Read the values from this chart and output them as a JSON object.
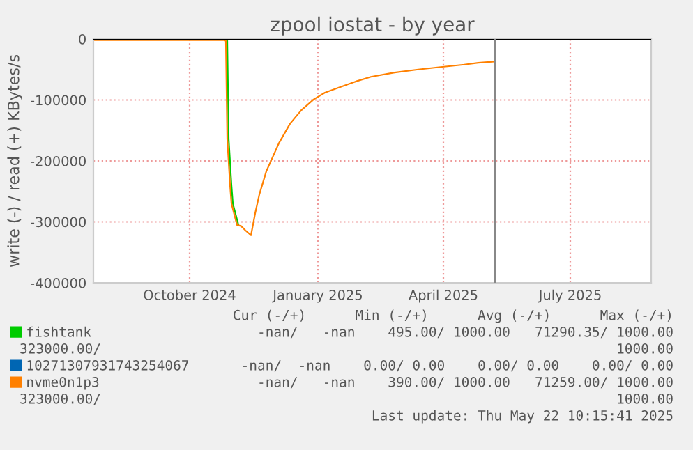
{
  "chart_data": {
    "type": "line",
    "title": "zpool iostat - by year",
    "ylabel": "write (-) / read (+) KBytes/s",
    "xlim": [
      "2024-07-24",
      "2025-08-28"
    ],
    "xticks": [
      {
        "value": "2024-10-01",
        "label": "October 2024"
      },
      {
        "value": "2025-01-01",
        "label": "January 2025"
      },
      {
        "value": "2025-04-01",
        "label": "April 2025"
      },
      {
        "value": "2025-07-01",
        "label": "July 2025"
      }
    ],
    "ylim": [
      -400000,
      0
    ],
    "yticks": [
      0,
      -100000,
      -200000,
      -300000,
      -400000
    ],
    "grid": true,
    "legend": "bottom",
    "marker": "none",
    "line_style": "solid",
    "series": [
      {
        "name": "fishtank",
        "color": "#00cc00",
        "x": [
          "2024-10-28",
          "2024-10-29",
          "2024-10-31",
          "2024-11-01",
          "2024-11-05"
        ],
        "values": [
          -3000,
          -164000,
          -240000,
          -270000,
          -305000
        ]
      },
      {
        "name": "10271307931743254067",
        "color": "#0066b3"
      },
      {
        "name": "nvme0n1p3",
        "color": "#ff8000",
        "x": [
          "2024-07-24",
          "2024-10-26",
          "2024-10-27",
          "2024-10-28",
          "2024-10-30",
          "2024-10-31",
          "2024-11-04",
          "2024-11-07",
          "2024-11-10",
          "2024-11-14",
          "2024-11-17",
          "2024-11-20",
          "2024-11-25",
          "2024-12-04",
          "2024-12-12",
          "2024-12-20",
          "2024-12-29",
          "2025-01-06",
          "2025-01-18",
          "2025-01-29",
          "2025-02-08",
          "2025-02-25",
          "2025-03-14",
          "2025-03-30",
          "2025-04-16",
          "2025-04-26",
          "2025-05-07"
        ],
        "values": [
          -2000,
          -2000,
          -3000,
          -164000,
          -240000,
          -270000,
          -305000,
          -307000,
          -314000,
          -322000,
          -286000,
          -255000,
          -217000,
          -171000,
          -139000,
          -117000,
          -99000,
          -88000,
          -78000,
          -69000,
          -62000,
          -55000,
          -50000,
          -46000,
          -42000,
          -39000,
          -37000
        ]
      }
    ],
    "ref_lines": [
      {
        "axis": "y",
        "value": 0,
        "color": "#000000"
      },
      {
        "axis": "x",
        "value": "2025-05-08",
        "color": "#888888"
      }
    ],
    "annotations": [
      "Cur (-/+)      Min (-/+)      Avg (-/+)      Max (-/+)",
      "-nan/   -nan    495.00/ 1000.00   71290.35/ 1000.00",
      "323000.00/",
      "1000.00",
      "-nan/  -nan    0.00/ 0.00    0.00/ 0.00    0.00/ 0.00",
      "-nan/   -nan    390.00/ 1000.00   71259.00/ 1000.00",
      "323000.00/",
      "1000.00",
      "Last update: Thu May 22 10:15:41 2025"
    ]
  }
}
